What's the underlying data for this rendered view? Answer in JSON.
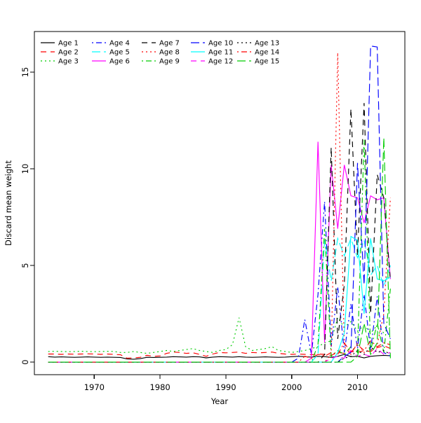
{
  "figure": {
    "background": "#ffffff",
    "axis_color": "#000000"
  },
  "chart_data": {
    "type": "line",
    "title": "",
    "xlabel": "Year",
    "ylabel": "Discard mean weight",
    "x_ticks": [
      1970,
      1980,
      1990,
      2000,
      2010
    ],
    "y_ticks": [
      0,
      5,
      10,
      15
    ],
    "xlim": [
      1960.9,
      2017.2
    ],
    "ylim": [
      -0.65,
      17.1
    ],
    "grid": false,
    "legend_position": "top-left",
    "legend_columns": 3,
    "x": [
      1963,
      1964,
      1965,
      1966,
      1967,
      1968,
      1969,
      1970,
      1971,
      1972,
      1973,
      1974,
      1975,
      1976,
      1977,
      1978,
      1979,
      1980,
      1981,
      1982,
      1983,
      1984,
      1985,
      1986,
      1987,
      1988,
      1989,
      1990,
      1991,
      1992,
      1993,
      1994,
      1995,
      1996,
      1997,
      1998,
      1999,
      2000,
      2001,
      2002,
      2003,
      2004,
      2005,
      2006,
      2007,
      2008,
      2009,
      2010,
      2011,
      2012,
      2013,
      2014,
      2015
    ],
    "series": [
      {
        "name": "Age 1",
        "color": "#000000",
        "linetype": "solid",
        "values": [
          0.28,
          0.26,
          0.27,
          0.26,
          0.25,
          0.26,
          0.27,
          0.26,
          0.25,
          0.26,
          0.25,
          0.24,
          0.16,
          0.15,
          0.18,
          0.25,
          0.24,
          0.25,
          0.26,
          0.28,
          0.27,
          0.26,
          0.28,
          0.27,
          0.22,
          0.26,
          0.28,
          0.27,
          0.26,
          0.28,
          0.26,
          0.25,
          0.26,
          0.27,
          0.26,
          0.25,
          0.26,
          0.28,
          0.3,
          0.28,
          0.26,
          0.3,
          0.28,
          0.25,
          0.3,
          0.4,
          0.28,
          0.3,
          0.22,
          0.3,
          0.33,
          0.35,
          0.33
        ]
      },
      {
        "name": "Age 2",
        "color": "#FF0000",
        "linetype": "dashed",
        "values": [
          0.42,
          0.42,
          0.4,
          0.42,
          0.41,
          0.42,
          0.43,
          0.42,
          0.4,
          0.42,
          0.4,
          0.38,
          0.2,
          0.22,
          0.25,
          0.35,
          0.3,
          0.32,
          0.45,
          0.52,
          0.5,
          0.45,
          0.48,
          0.4,
          0.3,
          0.42,
          0.5,
          0.48,
          0.5,
          0.52,
          0.45,
          0.5,
          0.48,
          0.5,
          0.52,
          0.45,
          0.42,
          0.4,
          0.42,
          0.4,
          0.38,
          0.42,
          0.4,
          0.35,
          0.5,
          0.45,
          0.55,
          0.5,
          0.6,
          0.55,
          0.75,
          0.85,
          0.7
        ]
      },
      {
        "name": "Age 3",
        "color": "#00CC00",
        "linetype": "dotted",
        "values": [
          0.55,
          0.56,
          0.55,
          0.54,
          0.55,
          0.56,
          0.55,
          0.54,
          0.55,
          0.56,
          0.55,
          0.5,
          0.5,
          0.55,
          0.5,
          0.45,
          0.5,
          0.55,
          0.6,
          0.55,
          0.6,
          0.65,
          0.7,
          0.6,
          0.55,
          0.5,
          0.6,
          0.65,
          0.9,
          2.3,
          0.8,
          0.6,
          0.65,
          0.7,
          0.8,
          0.6,
          0.55,
          0.5,
          0.55,
          0.6,
          0.7,
          0.8,
          1.0,
          1.1,
          2.3,
          1.8,
          2.1,
          1.6,
          1.9,
          1.5,
          1.9,
          1.5,
          1.8
        ]
      },
      {
        "name": "Age 4",
        "color": "#0000FF",
        "linetype": "dotdash",
        "values": [
          0,
          0,
          0,
          0,
          0,
          0,
          0,
          0,
          0,
          0,
          0,
          0,
          0,
          0,
          0,
          0,
          0,
          0,
          0,
          0,
          0,
          0,
          0,
          0,
          0,
          0,
          0,
          0,
          0,
          0,
          0,
          0,
          0,
          0,
          0,
          0,
          0,
          0,
          0.2,
          2.2,
          0.4,
          3.5,
          8.3,
          0.8,
          3.9,
          0.5,
          3.0,
          0.7,
          3.5,
          0.6,
          3.4,
          0.5,
          0.3
        ]
      },
      {
        "name": "Age 5",
        "color": "#00FFFF",
        "linetype": "longdash",
        "values": [
          0,
          0,
          0,
          0,
          0,
          0,
          0,
          0,
          0,
          0,
          0,
          0,
          0,
          0,
          0,
          0,
          0,
          0,
          0,
          0,
          0,
          0,
          0,
          0,
          0,
          0,
          0,
          0,
          0,
          0,
          0,
          0,
          0,
          0,
          0,
          0,
          0,
          0,
          0,
          0,
          0,
          0.4,
          6.3,
          4.2,
          6.4,
          5.5,
          6.4,
          5.4,
          6.3,
          4.5,
          5.0,
          3.9,
          5.0
        ]
      },
      {
        "name": "Age 6",
        "color": "#FF00FF",
        "linetype": "solid",
        "values": [
          0,
          0,
          0,
          0,
          0,
          0,
          0,
          0,
          0,
          0,
          0,
          0,
          0,
          0,
          0,
          0,
          0,
          0,
          0,
          0,
          0,
          0,
          0,
          0,
          0,
          0,
          0,
          0,
          0,
          0,
          0,
          0,
          0,
          0,
          0,
          0,
          0,
          0,
          0,
          0,
          0.2,
          11.4,
          1.0,
          10.2,
          6.9,
          10.2,
          8.6,
          8.5,
          7.2,
          8.6,
          8.4,
          8.5,
          4.3
        ]
      },
      {
        "name": "Age 7",
        "color": "#000000",
        "linetype": "dashed",
        "values": [
          0,
          0,
          0,
          0,
          0,
          0,
          0,
          0,
          0,
          0,
          0,
          0,
          0,
          0,
          0,
          0,
          0,
          0,
          0,
          0,
          0,
          0,
          0,
          0,
          0,
          0,
          0,
          0,
          0,
          0,
          0,
          0,
          0,
          0,
          0,
          0,
          0,
          0,
          0,
          0,
          0,
          0,
          0.4,
          11.1,
          1.2,
          4.0,
          13.1,
          5.5,
          13.4,
          2.5,
          9.7,
          8.5,
          4.2
        ]
      },
      {
        "name": "Age 8",
        "color": "#FF0000",
        "linetype": "dotted",
        "values": [
          0,
          0,
          0,
          0,
          0,
          0,
          0,
          0,
          0,
          0,
          0,
          0,
          0,
          0,
          0,
          0,
          0,
          0,
          0,
          0,
          0,
          0,
          0,
          0,
          0,
          0,
          0,
          0,
          0,
          0,
          0,
          0,
          0,
          0,
          0,
          0,
          0,
          0,
          0,
          0,
          0,
          0,
          0,
          0.4,
          16.0,
          0.8,
          0.4,
          1.0,
          0.5,
          0.6,
          0.9,
          2.5,
          8.5
        ]
      },
      {
        "name": "Age 9",
        "color": "#00CC00",
        "linetype": "dotdash",
        "values": [
          0,
          0,
          0,
          0,
          0,
          0,
          0,
          0,
          0,
          0,
          0,
          0,
          0,
          0,
          0,
          0,
          0,
          0,
          0,
          0,
          0,
          0,
          0,
          0,
          0,
          0,
          0,
          0,
          0,
          0,
          0,
          0,
          0,
          0,
          0,
          0,
          0,
          0,
          0,
          0,
          0,
          0.9,
          6.9,
          0.3,
          0.6,
          0.4,
          0.8,
          0.5,
          11.5,
          0.6,
          2.0,
          0.5,
          3.8
        ]
      },
      {
        "name": "Age 10",
        "color": "#0000FF",
        "linetype": "longdash",
        "values": [
          0,
          0,
          0,
          0,
          0,
          0,
          0,
          0,
          0,
          0,
          0,
          0,
          0,
          0,
          0,
          0,
          0,
          0,
          0,
          0,
          0,
          0,
          0,
          0,
          0,
          0,
          0,
          0,
          0,
          0,
          0,
          0,
          0,
          0,
          0,
          0,
          0,
          0,
          0,
          0,
          0,
          0,
          0,
          0,
          0,
          0.3,
          0.5,
          10.3,
          4.0,
          16.35,
          16.3,
          2.0,
          1.2
        ]
      },
      {
        "name": "Age 11",
        "color": "#00FFFF",
        "linetype": "solid",
        "values": [
          0,
          0,
          0,
          0,
          0,
          0,
          0,
          0,
          0,
          0,
          0,
          0,
          0,
          0,
          0,
          0,
          0,
          0,
          0,
          0,
          0,
          0,
          0,
          0,
          0,
          0,
          0,
          0,
          0,
          0,
          0,
          0,
          0,
          0,
          0,
          0,
          0,
          0,
          0,
          0,
          0,
          0,
          0,
          0,
          0.5,
          1.5,
          6.5,
          6.3,
          2.5,
          6.4,
          4.3,
          4.2,
          4.4
        ]
      },
      {
        "name": "Age 12",
        "color": "#FF00FF",
        "linetype": "dashed",
        "values": [
          0,
          0,
          0,
          0,
          0,
          0,
          0,
          0,
          0,
          0,
          0,
          0,
          0,
          0,
          0,
          0,
          0,
          0,
          0,
          0,
          0,
          0,
          0,
          0,
          0,
          0,
          0,
          0,
          0,
          0,
          0,
          0,
          0,
          0,
          0,
          0,
          0,
          0,
          0,
          0,
          0,
          0,
          0,
          0.2,
          0.3,
          0.2,
          0.6,
          0.3,
          0.4,
          0.3,
          0.7,
          0.4,
          0.5
        ]
      },
      {
        "name": "Age 13",
        "color": "#000000",
        "linetype": "dotted",
        "values": [
          0,
          0,
          0,
          0,
          0,
          0,
          0,
          0,
          0,
          0,
          0,
          0,
          0,
          0,
          0,
          0,
          0,
          0,
          0,
          0,
          0,
          0,
          0,
          0,
          0,
          0,
          0,
          0,
          0,
          0,
          0,
          0,
          0,
          0,
          0,
          0,
          0,
          0,
          0,
          0,
          0,
          0,
          0,
          0,
          0,
          0.2,
          0.3,
          0.6,
          0.4,
          0.8,
          0.5,
          0.6,
          0.4
        ]
      },
      {
        "name": "Age 14",
        "color": "#FF0000",
        "linetype": "dotdash",
        "values": [
          0,
          0,
          0,
          0,
          0,
          0,
          0,
          0,
          0,
          0,
          0,
          0,
          0,
          0,
          0,
          0,
          0,
          0,
          0,
          0,
          0,
          0,
          0,
          0,
          0,
          0,
          0,
          0,
          0,
          0,
          0,
          0,
          0,
          0,
          0,
          0,
          0,
          0,
          0,
          0.3,
          0.2,
          0.4,
          0.3,
          0.5,
          0.4,
          1.0,
          0.5,
          0.9,
          0.6,
          1.1,
          0.8,
          1.0,
          0.9
        ]
      },
      {
        "name": "Age 15",
        "color": "#00CC00",
        "linetype": "longdash",
        "values": [
          0,
          0,
          0,
          0,
          0,
          0,
          0,
          0,
          0,
          0,
          0,
          0,
          0,
          0,
          0,
          0,
          0,
          0,
          0,
          0,
          0,
          0,
          0,
          0,
          0,
          0,
          0,
          0,
          0,
          0,
          0,
          0,
          0,
          0,
          0,
          0,
          0,
          0,
          0,
          0,
          0,
          0,
          0,
          0,
          0,
          0,
          0,
          0.3,
          2.0,
          0.4,
          1.0,
          11.6,
          0.2
        ]
      }
    ]
  }
}
